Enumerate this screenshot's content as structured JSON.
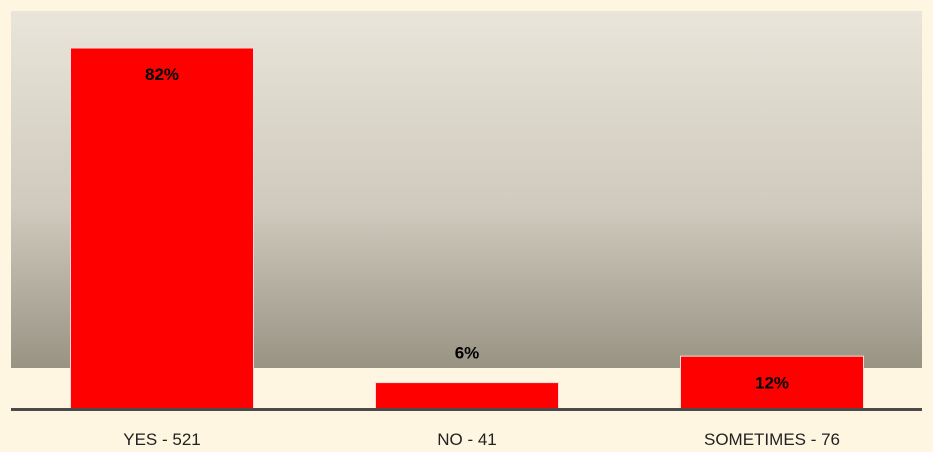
{
  "chart_data": {
    "type": "bar",
    "categories": [
      "YES - 521",
      "NO - 41",
      "SOMETIMES - 76"
    ],
    "values": [
      82,
      6,
      12
    ],
    "data_labels": [
      "82%",
      "6%",
      "12%"
    ],
    "ylim": [
      0,
      100
    ],
    "grid": false,
    "legend": "none",
    "title": "",
    "xlabel": "",
    "ylabel": ""
  },
  "colors": {
    "bar": "#ff0000",
    "bar_border": "#ffd9d9",
    "page_background": "#fff6e1",
    "plot_gradient_top": "#e9e5da",
    "plot_gradient_bottom": "#999384",
    "axis_line": "#4a4a4a"
  }
}
